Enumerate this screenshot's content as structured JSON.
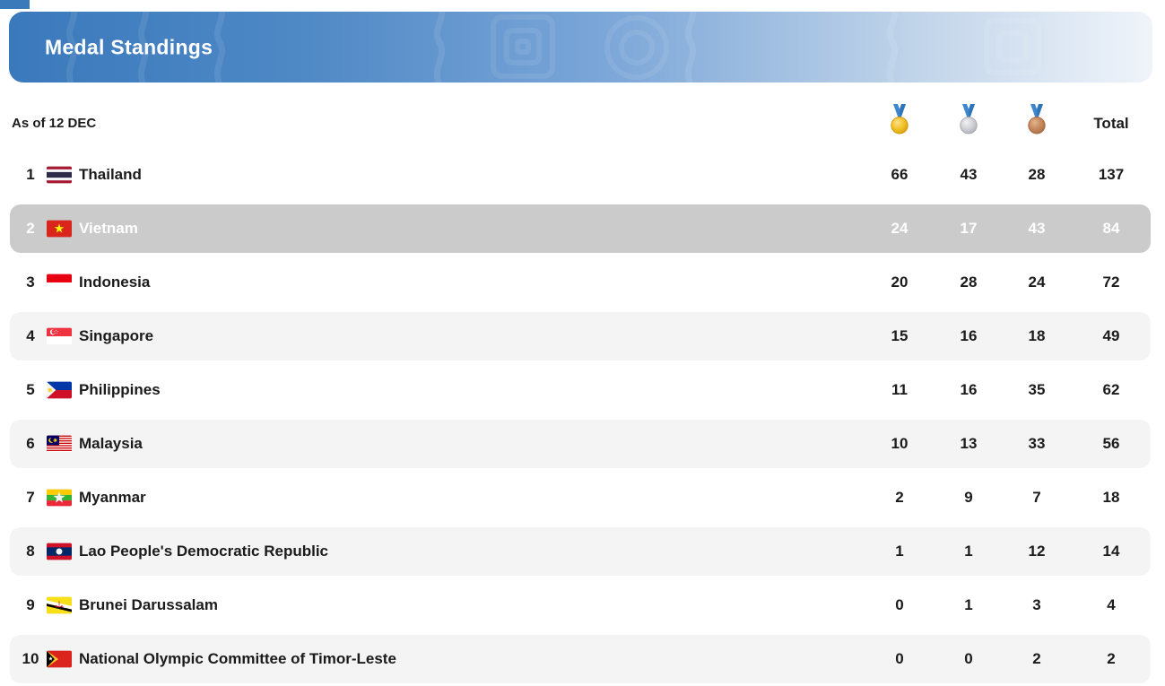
{
  "banner": {
    "title": "Medal Standings"
  },
  "table": {
    "as_of_label": "As of 12 DEC",
    "column_icons": [
      "gold-medal-icon",
      "silver-medal-icon",
      "bronze-medal-icon"
    ],
    "total_header": "Total",
    "rows": [
      {
        "rank": "1",
        "flag": "thailand",
        "country": "Thailand",
        "gold": "66",
        "silver": "43",
        "bronze": "28",
        "total": "137",
        "highlighted": false
      },
      {
        "rank": "2",
        "flag": "vietnam",
        "country": "Vietnam",
        "gold": "24",
        "silver": "17",
        "bronze": "43",
        "total": "84",
        "highlighted": true
      },
      {
        "rank": "3",
        "flag": "indonesia",
        "country": "Indonesia",
        "gold": "20",
        "silver": "28",
        "bronze": "24",
        "total": "72",
        "highlighted": false
      },
      {
        "rank": "4",
        "flag": "singapore",
        "country": "Singapore",
        "gold": "15",
        "silver": "16",
        "bronze": "18",
        "total": "49",
        "highlighted": false
      },
      {
        "rank": "5",
        "flag": "philippines",
        "country": "Philippines",
        "gold": "11",
        "silver": "16",
        "bronze": "35",
        "total": "62",
        "highlighted": false
      },
      {
        "rank": "6",
        "flag": "malaysia",
        "country": "Malaysia",
        "gold": "10",
        "silver": "13",
        "bronze": "33",
        "total": "56",
        "highlighted": false
      },
      {
        "rank": "7",
        "flag": "myanmar",
        "country": "Myanmar",
        "gold": "2",
        "silver": "9",
        "bronze": "7",
        "total": "18",
        "highlighted": false
      },
      {
        "rank": "8",
        "flag": "laos",
        "country": "Lao People's Democratic Republic",
        "gold": "1",
        "silver": "1",
        "bronze": "12",
        "total": "14",
        "highlighted": false
      },
      {
        "rank": "9",
        "flag": "brunei",
        "country": "Brunei Darussalam",
        "gold": "0",
        "silver": "1",
        "bronze": "3",
        "total": "4",
        "highlighted": false
      },
      {
        "rank": "10",
        "flag": "timor_leste",
        "country": "National Olympic Committee of Timor-Leste",
        "gold": "0",
        "silver": "0",
        "bronze": "2",
        "total": "2",
        "highlighted": false
      }
    ]
  },
  "colors": {
    "banner_gradient_start": "#3A79BC",
    "banner_gradient_end": "#F0F4FA",
    "highlight_row_bg": "#CBCBCB",
    "highlight_row_text": "#FFFFFF",
    "stripe_row_bg": "#F4F4F4",
    "text": "#1B1B1B",
    "ribbon_blue": "#3E87CC",
    "gold_medal": "#F0C020",
    "silver_medal": "#CDCDD3",
    "bronze_medal": "#C4855A"
  }
}
